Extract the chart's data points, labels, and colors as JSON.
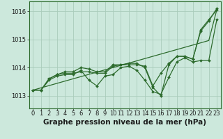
{
  "background_color": "#cce8dc",
  "grid_color": "#aaccbb",
  "line_color": "#2d6b2d",
  "marker_color": "#2d6b2d",
  "xlabel": "Graphe pression niveau de la mer (hPa)",
  "xlabel_fontsize": 7.5,
  "tick_fontsize": 6,
  "xlim": [
    -0.5,
    23.5
  ],
  "ylim": [
    1012.55,
    1016.35
  ],
  "yticks": [
    1013,
    1014,
    1015,
    1016
  ],
  "xticks": [
    0,
    1,
    2,
    3,
    4,
    5,
    6,
    7,
    8,
    9,
    10,
    11,
    12,
    13,
    14,
    15,
    16,
    17,
    18,
    19,
    20,
    21,
    22,
    23
  ],
  "series_with_markers": [
    [
      1013.2,
      1013.2,
      1013.55,
      1013.7,
      1013.75,
      1013.75,
      1013.9,
      1013.55,
      1013.35,
      1013.7,
      1013.75,
      1014.0,
      1014.05,
      1013.9,
      1013.55,
      1013.15,
      1013.05,
      1013.65,
      1014.2,
      1014.35,
      1014.2,
      1014.25,
      1014.25,
      1015.7
    ],
    [
      1013.2,
      1013.2,
      1013.6,
      1013.75,
      1013.8,
      1013.8,
      1013.85,
      1013.85,
      1013.8,
      1013.8,
      1014.05,
      1014.1,
      1014.1,
      1014.1,
      1014.05,
      1013.35,
      1013.8,
      1014.15,
      1014.4,
      1014.4,
      1014.3,
      1015.3,
      1015.65,
      1016.1
    ],
    [
      1013.2,
      1013.2,
      1013.6,
      1013.75,
      1013.85,
      1013.85,
      1014.0,
      1013.95,
      1013.85,
      1013.85,
      1014.1,
      1014.1,
      1014.15,
      1014.15,
      1014.0,
      1013.3,
      1013.0,
      1014.1,
      1014.4,
      1014.4,
      1014.3,
      1015.35,
      1015.7,
      1016.05
    ]
  ],
  "series_no_markers": [
    [
      1013.2,
      1013.28,
      1013.36,
      1013.44,
      1013.52,
      1013.6,
      1013.68,
      1013.76,
      1013.84,
      1013.92,
      1014.0,
      1014.08,
      1014.16,
      1014.24,
      1014.32,
      1014.4,
      1014.48,
      1014.56,
      1014.64,
      1014.72,
      1014.8,
      1014.88,
      1014.96,
      1016.05
    ]
  ]
}
